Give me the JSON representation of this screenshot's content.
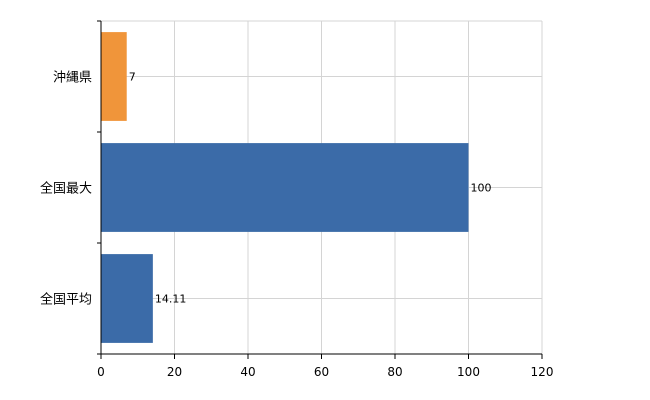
{
  "chart_data": {
    "type": "bar",
    "orientation": "horizontal",
    "categories": [
      "沖縄県",
      "全国最大",
      "全国平均"
    ],
    "values": [
      7,
      100,
      14.11
    ],
    "value_labels": [
      "7",
      "100",
      "14.11"
    ],
    "bar_colors": [
      "#F0953A",
      "#3B6BA8",
      "#3B6BA8"
    ],
    "xlim": [
      0,
      120
    ],
    "x_ticks": [
      0,
      20,
      40,
      60,
      80,
      100,
      120
    ],
    "x_tick_labels": [
      "0",
      "20",
      "40",
      "60",
      "80",
      "100",
      "120"
    ],
    "grid": true,
    "grid_color": "#d4d4d4",
    "axis_color": "#000000",
    "title": "",
    "xlabel": "",
    "ylabel": ""
  }
}
